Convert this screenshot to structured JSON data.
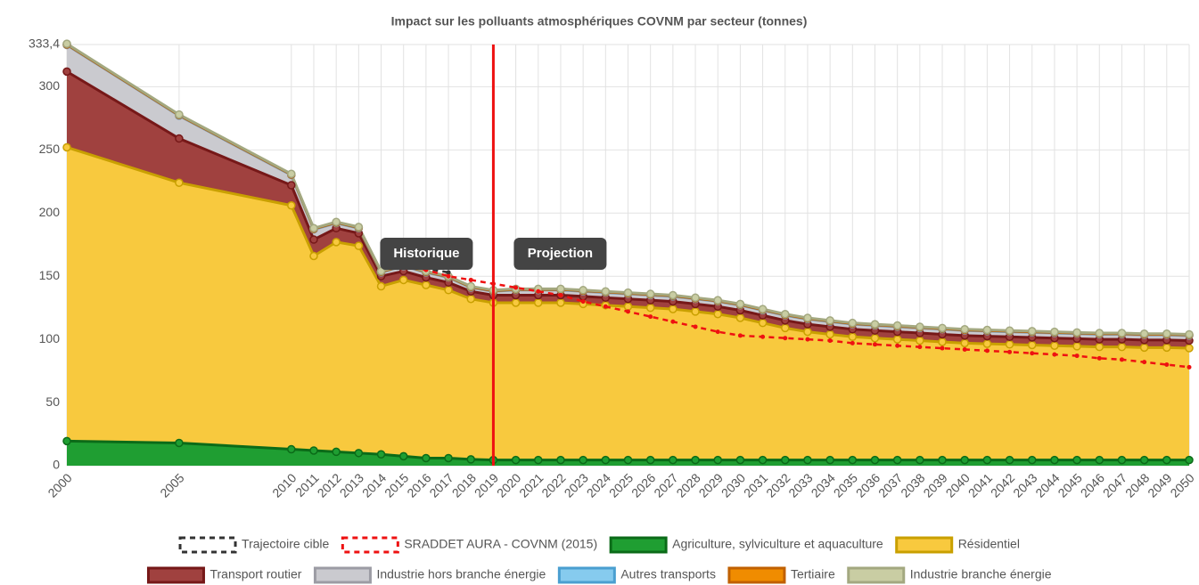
{
  "chart_data": {
    "type": "stacked-area",
    "title": "Impact sur les polluants atmosphériques COVNM par secteur (tonnes)",
    "x": [
      2000,
      2005,
      2010,
      2011,
      2012,
      2013,
      2014,
      2015,
      2016,
      2017,
      2018,
      2019,
      2020,
      2021,
      2022,
      2023,
      2024,
      2025,
      2026,
      2027,
      2028,
      2029,
      2030,
      2031,
      2032,
      2033,
      2034,
      2035,
      2036,
      2037,
      2038,
      2039,
      2040,
      2041,
      2042,
      2043,
      2044,
      2045,
      2046,
      2047,
      2048,
      2049,
      2050
    ],
    "xlim": [
      2000,
      2050
    ],
    "xticks": [
      2000,
      2005,
      2010,
      2011,
      2012,
      2013,
      2014,
      2015,
      2016,
      2017,
      2018,
      2019,
      2020,
      2021,
      2022,
      2023,
      2024,
      2025,
      2026,
      2027,
      2028,
      2029,
      2030,
      2031,
      2032,
      2033,
      2034,
      2035,
      2036,
      2037,
      2038,
      2039,
      2040,
      2041,
      2042,
      2043,
      2044,
      2045,
      2046,
      2047,
      2048,
      2049,
      2050
    ],
    "ylim": [
      0,
      333.4
    ],
    "yticks": [
      0,
      50,
      100,
      150,
      200,
      250,
      300,
      {
        "value": 333.4,
        "label": "333,4"
      }
    ],
    "grid": true,
    "vline": 2019,
    "annotations": [
      "Historique",
      "Projection"
    ],
    "lines": [
      {
        "name": "Trajectoire cible",
        "color": "#333333",
        "values": [
          null,
          null,
          null,
          null,
          null,
          null,
          null,
          158,
          156,
          153,
          null,
          null,
          null,
          null,
          null,
          null,
          null,
          null,
          null,
          null,
          null,
          null,
          null,
          null,
          null,
          null,
          null,
          null,
          null,
          null,
          null,
          null,
          null,
          null,
          null,
          null,
          null,
          null,
          null,
          null,
          null,
          null,
          null
        ]
      },
      {
        "name": "SRADDET AURA - COVNM (2015)",
        "color": "#ee1111",
        "values": [
          null,
          null,
          null,
          null,
          null,
          null,
          null,
          158,
          155,
          150,
          147,
          144,
          141,
          138,
          135,
          130,
          126,
          122,
          118,
          114,
          110,
          106,
          103,
          102,
          101,
          100,
          99,
          97,
          96,
          95,
          94,
          93,
          92,
          91,
          90,
          89,
          88,
          87,
          85,
          84,
          82,
          80,
          78
        ]
      }
    ],
    "series": [
      {
        "name": "Agriculture, sylviculture et aquaculture",
        "color": "#1f9e32",
        "stroke": "#0b6b18",
        "values": [
          19.5,
          18,
          13,
          12,
          11,
          10,
          9,
          7.5,
          6,
          6,
          5,
          4.5,
          4.5,
          4.5,
          4.5,
          4.5,
          4.5,
          4.5,
          4.5,
          4.5,
          4.5,
          4.5,
          4.5,
          4.5,
          4.5,
          4.5,
          4.5,
          4.5,
          4.5,
          4.5,
          4.5,
          4.5,
          4.5,
          4.5,
          4.5,
          4.5,
          4.5,
          4.5,
          4.5,
          4.5,
          4.5,
          4.5,
          4.5
        ]
      },
      {
        "name": "Résidentiel",
        "color": "#f8c93e",
        "stroke": "#c9a000",
        "values": [
          232.5,
          206,
          193,
          154,
          166,
          164,
          133,
          139.5,
          137,
          133,
          127,
          124.5,
          124.5,
          124.5,
          124.5,
          123.5,
          122.5,
          121.5,
          120.5,
          119.5,
          117.5,
          115.5,
          112.5,
          108.5,
          104.5,
          101.5,
          99.5,
          97.5,
          96.5,
          95.5,
          94.5,
          93.5,
          92.5,
          92,
          91.5,
          91,
          90.5,
          90,
          89.5,
          89.5,
          89,
          89,
          88.5
        ]
      },
      {
        "name": "Transport routier",
        "color": "#a0413f",
        "stroke": "#761818",
        "values": [
          60,
          35,
          16,
          13,
          11,
          10,
          8,
          7,
          6,
          6,
          6,
          6,
          6,
          6,
          6,
          6,
          6,
          6,
          6,
          6,
          6,
          6,
          6,
          6,
          6,
          6,
          6,
          6,
          6,
          6,
          6,
          6,
          6,
          6,
          6,
          6,
          6,
          6,
          6,
          6,
          6,
          6,
          6
        ]
      },
      {
        "name": "Industrie hors branche énergie",
        "color": "#cacacf",
        "stroke": "#9c9ca4",
        "values": [
          21,
          18,
          8,
          8,
          4,
          4,
          3,
          4,
          4,
          4,
          3,
          3,
          4,
          4,
          4,
          4,
          4,
          4,
          4,
          4,
          4,
          4,
          4,
          4,
          4,
          4,
          4,
          4,
          4,
          4,
          4,
          4,
          4,
          4,
          4,
          4,
          4,
          4,
          4,
          4,
          4,
          4,
          4
        ]
      },
      {
        "name": "Autres transports",
        "color": "#86cbee",
        "stroke": "#4a9fd0",
        "values": [
          0.3,
          0.3,
          0.3,
          0.3,
          0.3,
          0.3,
          0.3,
          0.3,
          0.3,
          0.3,
          0.3,
          0.3,
          0.3,
          0.3,
          0.3,
          0.3,
          0.3,
          0.3,
          0.3,
          0.3,
          0.3,
          0.3,
          0.3,
          0.3,
          0.3,
          0.3,
          0.3,
          0.3,
          0.3,
          0.3,
          0.3,
          0.3,
          0.3,
          0.3,
          0.3,
          0.3,
          0.3,
          0.3,
          0.3,
          0.3,
          0.3,
          0.3,
          0.3
        ]
      },
      {
        "name": "Tertiaire",
        "color": "#f08c00",
        "stroke": "#c06000",
        "values": [
          0.2,
          0.2,
          0.2,
          0.2,
          0.2,
          0.2,
          0.2,
          0.2,
          0.2,
          0.2,
          0.2,
          0.2,
          0.2,
          0.2,
          0.2,
          0.2,
          0.2,
          0.2,
          0.2,
          0.2,
          0.2,
          0.2,
          0.2,
          0.2,
          0.2,
          0.2,
          0.2,
          0.2,
          0.2,
          0.2,
          0.2,
          0.2,
          0.2,
          0.2,
          0.2,
          0.2,
          0.2,
          0.2,
          0.2,
          0.2,
          0.2,
          0.2,
          0.2
        ]
      },
      {
        "name": "Industrie branche énergie",
        "color": "#c9cda3",
        "stroke": "#a3a880",
        "values": [
          0.5,
          0.5,
          0.5,
          0.5,
          0.5,
          0.5,
          0.5,
          0.5,
          0.5,
          0.5,
          0.5,
          0.5,
          0.5,
          0.5,
          0.5,
          0.5,
          0.5,
          0.5,
          0.5,
          0.5,
          0.5,
          0.5,
          0.5,
          0.5,
          0.5,
          0.5,
          0.5,
          0.5,
          0.5,
          0.5,
          0.5,
          0.5,
          0.5,
          0.5,
          0.5,
          0.5,
          0.5,
          0.5,
          0.5,
          0.5,
          0.5,
          0.5,
          0.5
        ]
      }
    ]
  }
}
